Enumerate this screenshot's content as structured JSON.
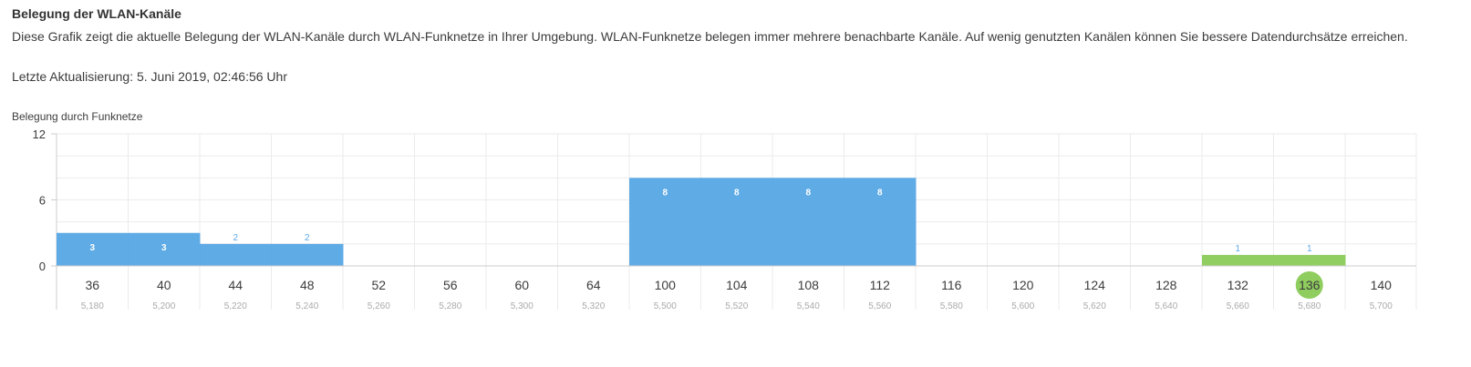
{
  "header": {
    "title": "Belegung der WLAN-Kanäle",
    "description": "Diese Grafik zeigt die aktuelle Belegung der WLAN-Kanäle durch WLAN-Funknetze in Ihrer Umgebung. WLAN-Funknetze belegen immer mehrere benachbarte Kanäle. Auf wenig genutzten Kanälen können Sie bessere Datendurchsätze erreichen.",
    "last_update": "Letzte Aktualisierung: 5. Juni 2019, 02:46:56 Uhr"
  },
  "chart_data": {
    "type": "bar",
    "title": "Belegung durch Funknetze",
    "xlabel": "",
    "ylabel": "",
    "ylim": [
      0,
      12
    ],
    "yticks": [
      0,
      6,
      12
    ],
    "grid": true,
    "categories": [
      "36",
      "40",
      "44",
      "48",
      "52",
      "56",
      "60",
      "64",
      "100",
      "104",
      "108",
      "112",
      "116",
      "120",
      "124",
      "128",
      "132",
      "136",
      "140"
    ],
    "frequencies": [
      "5,180",
      "5,200",
      "5,220",
      "5,240",
      "5,260",
      "5,280",
      "5,300",
      "5,320",
      "5,500",
      "5,520",
      "5,540",
      "5,560",
      "5,580",
      "5,600",
      "5,620",
      "5,640",
      "5,660",
      "5,680",
      "5,700"
    ],
    "values": [
      3,
      3,
      2,
      2,
      0,
      0,
      0,
      0,
      8,
      8,
      8,
      8,
      0,
      0,
      0,
      0,
      1,
      1,
      0
    ],
    "highlighted_channel": "136",
    "colors": {
      "blue": "#5ca9e6",
      "green": "#8fcd5e",
      "label_blue": "#5ca9e6",
      "label_white": "#ffffff",
      "grid": "#ebebeb",
      "axis": "#cccccc",
      "freq_text": "#aaaaaa"
    },
    "bar_groups": [
      {
        "start": 0,
        "end": 1,
        "value": 3,
        "color": "blue",
        "labels_inside": true
      },
      {
        "start": 2,
        "end": 3,
        "value": 2,
        "color": "blue",
        "labels_inside": false
      },
      {
        "start": 8,
        "end": 11,
        "value": 8,
        "color": "blue",
        "labels_inside": true
      },
      {
        "start": 16,
        "end": 17,
        "value": 1,
        "color": "green",
        "labels_inside": false
      }
    ]
  }
}
